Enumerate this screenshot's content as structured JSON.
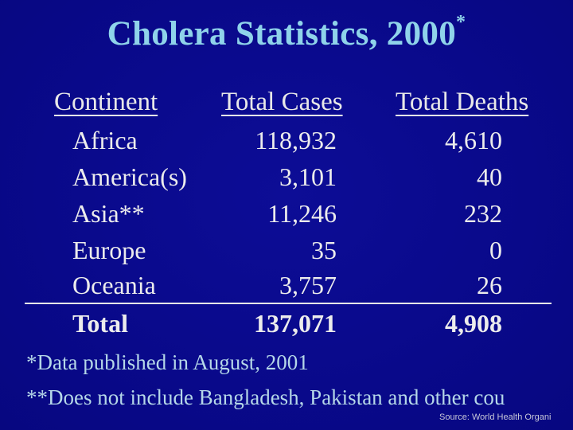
{
  "title": {
    "text": "Cholera Statistics, 2000",
    "marker": "*"
  },
  "table": {
    "headers": {
      "continent": "Continent",
      "cases": "Total Cases",
      "deaths": "Total Deaths"
    },
    "rows": [
      {
        "continent": "Africa",
        "cases": "118,932",
        "deaths": "4,610"
      },
      {
        "continent": "America(s)",
        "cases": "3,101",
        "deaths": "40"
      },
      {
        "continent": "Asia**",
        "cases": "11,246",
        "deaths": "232"
      },
      {
        "continent": "Europe",
        "cases": "35",
        "deaths": "0"
      },
      {
        "continent": "Oceania",
        "cases": "3,757",
        "deaths": "26"
      }
    ],
    "total": {
      "label": "Total",
      "cases": "137,071",
      "deaths": "4,908"
    }
  },
  "notes": {
    "note1": "*Data published in August, 2001",
    "note2": "**Does not include Bangladesh, Pakistan and other cou"
  },
  "source": "Source:  World Health Organi",
  "colors": {
    "background": "#0a0a8c",
    "title": "#8fd3ea",
    "body_text": "#ececec",
    "notes": "#b5d7e8"
  }
}
